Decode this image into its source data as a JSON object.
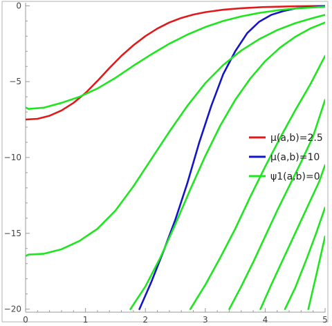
{
  "chart_data": {
    "type": "line",
    "xlim": [
      0,
      5
    ],
    "ylim": [
      -20.2,
      0.2
    ],
    "x_ticks": [
      0,
      1,
      2,
      3,
      4,
      5
    ],
    "x_tick_labels": [
      "0",
      "1",
      "2",
      "3",
      "4",
      "5"
    ],
    "y_ticks": [
      0,
      -5,
      -10,
      -15,
      -20
    ],
    "y_tick_labels": [
      "0",
      "−5",
      "−10",
      "−15",
      "−20"
    ],
    "grid": false,
    "legend_position": "right",
    "legend": [
      {
        "label": "μ(a,b)=2.5",
        "color": "#e0191b"
      },
      {
        "label": "μ(a,b)=10",
        "color": "#1414c8"
      },
      {
        "label": "ψ1(a,b)=0",
        "color": "#1ee61e"
      }
    ],
    "series": [
      {
        "legend": 0,
        "color": "#e0191b",
        "x": [
          0,
          0.2,
          0.4,
          0.6,
          0.8,
          1.0,
          1.2,
          1.4,
          1.6,
          1.8,
          2.0,
          2.2,
          2.4,
          2.6,
          2.8,
          3.0,
          3.3,
          3.6,
          4.0,
          4.5,
          5.0
        ],
        "y": [
          -7.5,
          -7.45,
          -7.25,
          -6.9,
          -6.4,
          -5.75,
          -4.95,
          -4.1,
          -3.3,
          -2.6,
          -2.0,
          -1.5,
          -1.1,
          -0.8,
          -0.58,
          -0.42,
          -0.26,
          -0.16,
          -0.08,
          -0.03,
          -0.01
        ]
      },
      {
        "legend": 1,
        "color": "#1414c8",
        "x": [
          1.9,
          2.1,
          2.3,
          2.5,
          2.7,
          2.9,
          3.1,
          3.3,
          3.5,
          3.7,
          3.9,
          4.1,
          4.3,
          4.5,
          4.7,
          5.0
        ],
        "y": [
          -20.0,
          -18.2,
          -16.2,
          -14.1,
          -11.7,
          -9.0,
          -6.6,
          -4.5,
          -3.0,
          -1.8,
          -1.05,
          -0.6,
          -0.35,
          -0.18,
          -0.1,
          -0.03
        ]
      },
      {
        "legend": 2,
        "color": "#1ee61e",
        "x": [
          0,
          0.05,
          0.3,
          0.6,
          0.9,
          1.2,
          1.5,
          1.8,
          2.1,
          2.4,
          2.7,
          3.0,
          3.3,
          3.6,
          3.9,
          4.2,
          4.5,
          5.0
        ],
        "y": [
          -6.7,
          -6.8,
          -6.72,
          -6.4,
          -6.0,
          -5.45,
          -4.75,
          -3.95,
          -3.2,
          -2.5,
          -1.9,
          -1.4,
          -1.0,
          -0.7,
          -0.47,
          -0.3,
          -0.18,
          -0.06
        ]
      },
      {
        "legend": 2,
        "color": "#1ee61e",
        "x": [
          0,
          0.05,
          0.3,
          0.6,
          0.9,
          1.2,
          1.5,
          1.8,
          2.1,
          2.4,
          2.7,
          3.0,
          3.3,
          3.6,
          3.9,
          4.2,
          4.5,
          4.8,
          5.0
        ],
        "y": [
          -16.5,
          -16.4,
          -16.35,
          -16.05,
          -15.5,
          -14.7,
          -13.5,
          -11.9,
          -10.1,
          -8.3,
          -6.6,
          -5.1,
          -3.9,
          -2.95,
          -2.2,
          -1.6,
          -1.15,
          -0.8,
          -0.6
        ]
      },
      {
        "legend": 2,
        "color": "#1ee61e",
        "x": [
          1.75,
          2.0,
          2.25,
          2.5,
          2.75,
          3.0,
          3.25,
          3.5,
          3.75,
          4.0,
          4.25,
          4.5,
          4.75,
          5.0
        ],
        "y": [
          -20.0,
          -18.5,
          -16.6,
          -14.4,
          -12.1,
          -9.9,
          -7.9,
          -6.2,
          -4.8,
          -3.65,
          -2.75,
          -2.05,
          -1.5,
          -1.1
        ]
      },
      {
        "legend": 2,
        "color": "#1ee61e",
        "x": [
          2.75,
          3.0,
          3.25,
          3.5,
          3.75,
          4.0,
          4.25,
          4.5,
          4.75,
          5.0
        ],
        "y": [
          -20.0,
          -18.4,
          -16.6,
          -14.7,
          -12.6,
          -10.6,
          -8.7,
          -6.9,
          -5.2,
          -3.3
        ]
      },
      {
        "legend": 2,
        "color": "#1ee61e",
        "x": [
          3.4,
          3.6,
          3.8,
          4.0,
          4.2,
          4.4,
          4.6,
          4.8,
          5.0
        ],
        "y": [
          -20.0,
          -18.5,
          -16.9,
          -15.2,
          -13.5,
          -11.9,
          -10.3,
          -8.6,
          -6.2
        ]
      },
      {
        "legend": 2,
        "color": "#1ee61e",
        "x": [
          3.92,
          4.1,
          4.3,
          4.5,
          4.7,
          4.9,
          5.0
        ],
        "y": [
          -20.0,
          -18.4,
          -16.7,
          -15.0,
          -13.3,
          -11.6,
          -10.5
        ]
      },
      {
        "legend": 2,
        "color": "#1ee61e",
        "x": [
          4.33,
          4.5,
          4.7,
          4.85,
          5.0
        ],
        "y": [
          -20.0,
          -18.6,
          -16.6,
          -15.0,
          -13.3
        ]
      },
      {
        "legend": 2,
        "color": "#1ee61e",
        "x": [
          4.72,
          4.85,
          5.0
        ],
        "y": [
          -20.0,
          -17.8,
          -15.2
        ]
      }
    ]
  }
}
